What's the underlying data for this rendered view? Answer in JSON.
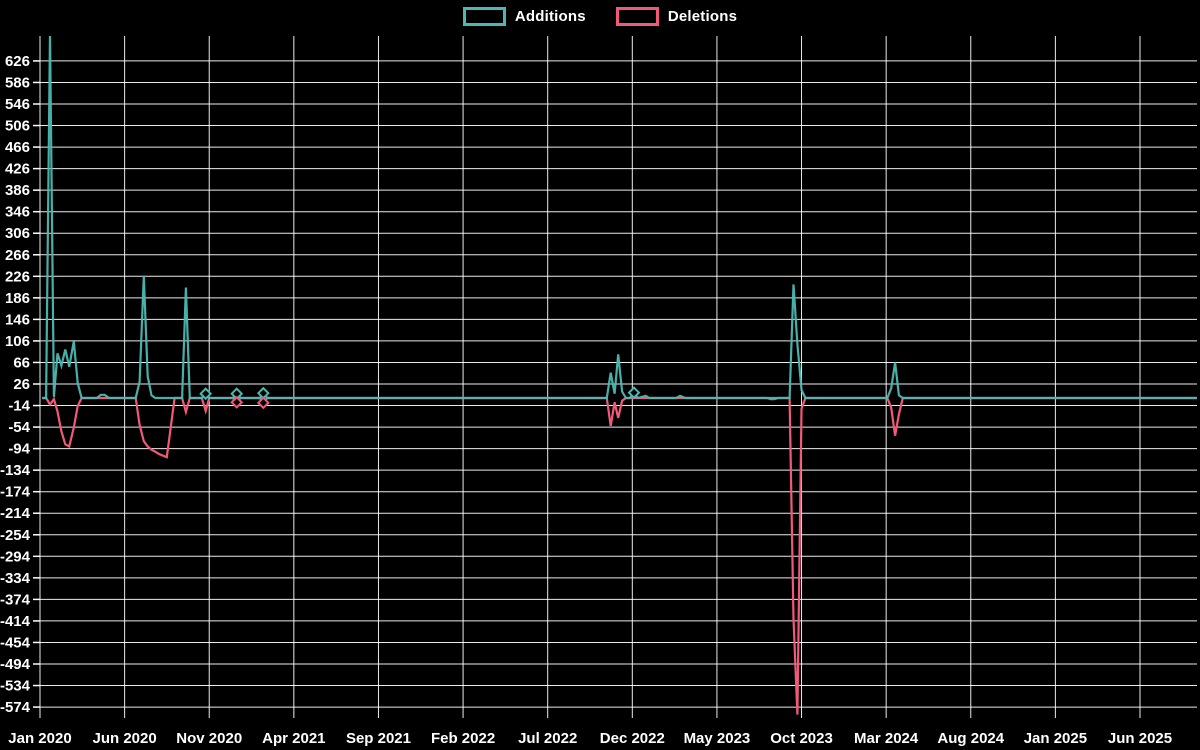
{
  "page": {
    "background_color": "#000000",
    "text_color": "#ffffff",
    "grid_color": "#ffffff"
  },
  "chart_data": {
    "type": "line",
    "title": "",
    "legend": [
      "Additions",
      "Deletions"
    ],
    "legend_position": "top-center",
    "grid": true,
    "series_colors": {
      "Additions": "#4db8b2",
      "Deletions": "#f25978"
    },
    "x_axis": {
      "ticks": [
        {
          "label": "Jan 2020",
          "date": "2020-01-01"
        },
        {
          "label": "Jun 2020",
          "date": "2020-06-01"
        },
        {
          "label": "Nov 2020",
          "date": "2020-11-01"
        },
        {
          "label": "Apr 2021",
          "date": "2021-04-01"
        },
        {
          "label": "Sep 2021",
          "date": "2021-09-01"
        },
        {
          "label": "Feb 2022",
          "date": "2022-02-01"
        },
        {
          "label": "Jul 2022",
          "date": "2022-07-01"
        },
        {
          "label": "Dec 2022",
          "date": "2022-12-01"
        },
        {
          "label": "May 2023",
          "date": "2023-05-01"
        },
        {
          "label": "Oct 2023",
          "date": "2023-10-01"
        },
        {
          "label": "Mar 2024",
          "date": "2024-03-01"
        },
        {
          "label": "Aug 2024",
          "date": "2024-08-01"
        },
        {
          "label": "Jan 2025",
          "date": "2025-01-01"
        },
        {
          "label": "Jun 2025",
          "date": "2025-06-01"
        }
      ]
    },
    "y_axis": {
      "tick_step": 40,
      "ylim": [
        -574,
        626
      ],
      "ticks": [
        626,
        586,
        546,
        506,
        466,
        426,
        386,
        346,
        306,
        266,
        226,
        186,
        146,
        106,
        66,
        26,
        -14,
        -54,
        -94,
        -134,
        -174,
        -214,
        -254,
        -294,
        -334,
        -374,
        -414,
        -454,
        -494,
        -534,
        -574
      ]
    },
    "points_format": [
      "week_start",
      "additions",
      "deletions"
    ],
    "points": [
      [
        "2020-01-05",
        0,
        0
      ],
      [
        "2020-01-12",
        0,
        0
      ],
      [
        "2020-01-19",
        676,
        -12
      ],
      [
        "2020-01-26",
        2,
        -2
      ],
      [
        "2020-02-02",
        83,
        -25
      ],
      [
        "2020-02-09",
        60,
        -62
      ],
      [
        "2020-02-16",
        90,
        -86
      ],
      [
        "2020-02-23",
        58,
        -90
      ],
      [
        "2020-03-01",
        105,
        -55
      ],
      [
        "2020-03-08",
        28,
        -15
      ],
      [
        "2020-03-15",
        0,
        0
      ],
      [
        "2020-04-12",
        0,
        0
      ],
      [
        "2020-04-19",
        6,
        0
      ],
      [
        "2020-04-26",
        6,
        0
      ],
      [
        "2020-05-03",
        0,
        0
      ],
      [
        "2020-06-21",
        0,
        0
      ],
      [
        "2020-06-28",
        30,
        -50
      ],
      [
        "2020-07-05",
        227,
        -80
      ],
      [
        "2020-07-12",
        40,
        -90
      ],
      [
        "2020-07-19",
        5,
        -96
      ],
      [
        "2020-07-26",
        0,
        -100
      ],
      [
        "2020-08-02",
        0,
        -104
      ],
      [
        "2020-08-09",
        0,
        -107
      ],
      [
        "2020-08-16",
        0,
        -110
      ],
      [
        "2020-08-23",
        0,
        -55
      ],
      [
        "2020-08-30",
        0,
        0
      ],
      [
        "2020-09-13",
        0,
        0
      ],
      [
        "2020-09-20",
        205,
        -26
      ],
      [
        "2020-09-27",
        0,
        0
      ],
      [
        "2020-10-18",
        0,
        0
      ],
      [
        "2020-10-25",
        8,
        -24
      ],
      [
        "2020-11-01",
        0,
        0
      ],
      [
        "2020-12-13",
        0,
        0
      ],
      [
        "2020-12-20",
        8,
        -8
      ],
      [
        "2020-12-27",
        0,
        0
      ],
      [
        "2021-01-31",
        0,
        0
      ],
      [
        "2021-02-07",
        9,
        -9
      ],
      [
        "2021-02-14",
        0,
        0
      ],
      [
        "2022-10-16",
        0,
        0
      ],
      [
        "2022-10-23",
        47,
        -52
      ],
      [
        "2022-10-30",
        8,
        -8
      ],
      [
        "2022-11-06",
        81,
        -37
      ],
      [
        "2022-11-13",
        12,
        -5
      ],
      [
        "2022-11-20",
        0,
        0
      ],
      [
        "2022-11-27",
        0,
        0
      ],
      [
        "2022-12-04",
        10,
        0
      ],
      [
        "2022-12-11",
        0,
        0
      ],
      [
        "2022-12-25",
        4,
        0
      ],
      [
        "2023-01-01",
        0,
        0
      ],
      [
        "2023-02-19",
        0,
        0
      ],
      [
        "2023-02-26",
        4,
        0
      ],
      [
        "2023-03-05",
        0,
        0
      ],
      [
        "2023-07-30",
        0,
        0
      ],
      [
        "2023-08-06",
        0,
        -2
      ],
      [
        "2023-08-13",
        0,
        -2
      ],
      [
        "2023-08-20",
        0,
        0
      ],
      [
        "2023-09-10",
        0,
        0
      ],
      [
        "2023-09-17",
        211,
        -410
      ],
      [
        "2023-09-24",
        100,
        -588
      ],
      [
        "2023-10-01",
        15,
        -20
      ],
      [
        "2023-10-08",
        0,
        0
      ],
      [
        "2024-03-03",
        0,
        0
      ],
      [
        "2024-03-10",
        18,
        -18
      ],
      [
        "2024-03-17",
        66,
        -70
      ],
      [
        "2024-03-24",
        5,
        -30
      ],
      [
        "2024-03-31",
        0,
        0
      ],
      [
        "2025-09-21",
        0,
        0
      ]
    ],
    "markers": [
      {
        "date": "2020-10-25",
        "series": "Additions",
        "value": 8
      },
      {
        "date": "2020-12-20",
        "series": "Additions",
        "value": 8
      },
      {
        "date": "2020-12-20",
        "series": "Deletions",
        "value": -8
      },
      {
        "date": "2021-02-07",
        "series": "Additions",
        "value": 9
      },
      {
        "date": "2021-02-07",
        "series": "Deletions",
        "value": -9
      },
      {
        "date": "2022-12-04",
        "series": "Additions",
        "value": 10
      }
    ]
  }
}
